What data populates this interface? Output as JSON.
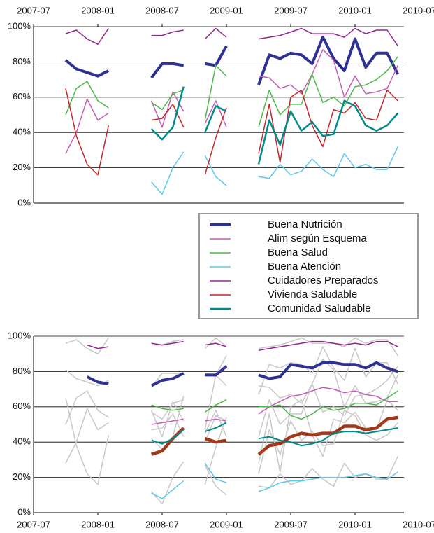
{
  "chart_data": [
    {
      "type": "line",
      "x_axis_position": "top",
      "legend": "below",
      "x": [
        "2007-10",
        "2007-11",
        "2007-12",
        "2008-01",
        "2008-02",
        "2008-03",
        "2008-04",
        "2008-05",
        "2008-06",
        "2008-07",
        "2008-08",
        "2008-09",
        "2008-10",
        "2008-11",
        "2008-12",
        "2009-01",
        "2009-02",
        "2009-03",
        "2009-04",
        "2009-05",
        "2009-06",
        "2009-07",
        "2009-08",
        "2009-09",
        "2009-10",
        "2009-11",
        "2009-12",
        "2010-01",
        "2010-02",
        "2010-03",
        "2010-04",
        "2010-05"
      ],
      "xlim": [
        "2007-07",
        "2010-07"
      ],
      "xticks": [
        "2007-07",
        "2008-01",
        "2008-07",
        "2009-01",
        "2009-07",
        "2010-01",
        "2010-07"
      ],
      "ylim": [
        0,
        100
      ],
      "yticks": [
        {
          "value": 0,
          "label": "0%"
        },
        {
          "value": 20,
          "label": "20%"
        },
        {
          "value": 40,
          "label": "40%"
        },
        {
          "value": 60,
          "label": "60%"
        },
        {
          "value": 80,
          "label": "80%"
        },
        {
          "value": 100,
          "label": "100%"
        }
      ],
      "grid": true,
      "series": [
        {
          "name": "Buena Nutrición",
          "color": "#2e3192",
          "linewidth": 4,
          "values": [
            81,
            76,
            74,
            72,
            75,
            null,
            null,
            null,
            71,
            79,
            79,
            78,
            null,
            79,
            78,
            89,
            null,
            null,
            67,
            84,
            82,
            85,
            84,
            79,
            94,
            82,
            75,
            93,
            77,
            85,
            85,
            73
          ]
        },
        {
          "name": "Alim según Esquema",
          "color": "#c45fb5",
          "linewidth": 1.5,
          "values": [
            28,
            40,
            59,
            47,
            51,
            null,
            null,
            null,
            58,
            43,
            63,
            52,
            null,
            45,
            58,
            43,
            null,
            null,
            72,
            71,
            65,
            67,
            62,
            73,
            87,
            81,
            60,
            72,
            62,
            63,
            65,
            78
          ]
        },
        {
          "name": "Buena Salud",
          "color": "#4db848",
          "linewidth": 1.5,
          "values": [
            50,
            65,
            69,
            58,
            54,
            null,
            null,
            null,
            57,
            53,
            62,
            64,
            null,
            47,
            78,
            72,
            null,
            null,
            43,
            64,
            50,
            56,
            56,
            73,
            57,
            60,
            55,
            66,
            67,
            70,
            75,
            83
          ]
        },
        {
          "name": "Buena Atención",
          "color": "#5ec8e8",
          "linewidth": 1.5,
          "values": [
            null,
            null,
            null,
            null,
            null,
            null,
            null,
            null,
            12,
            5,
            20,
            29,
            null,
            27,
            15,
            10,
            null,
            null,
            15,
            14,
            22,
            16,
            18,
            25,
            19,
            15,
            28,
            20,
            22,
            19,
            19,
            32
          ]
        },
        {
          "name": "Cuidadores Preparados",
          "color": "#92278f",
          "linewidth": 1.5,
          "values": [
            96,
            98,
            93,
            90,
            99,
            null,
            null,
            null,
            95,
            95,
            97,
            98,
            null,
            93,
            99,
            94,
            null,
            null,
            93,
            94,
            95,
            97,
            99,
            96,
            96,
            96,
            94,
            99,
            96,
            98,
            98,
            89
          ]
        },
        {
          "name": "Vivienda Saludable",
          "color": "#c1272d",
          "linewidth": 1.5,
          "values": [
            65,
            38,
            22,
            16,
            44,
            null,
            null,
            null,
            47,
            48,
            56,
            43,
            null,
            16,
            37,
            54,
            null,
            null,
            28,
            56,
            23,
            60,
            64,
            44,
            32,
            53,
            51,
            57,
            48,
            47,
            64,
            58
          ]
        },
        {
          "name": "Comunidad Saludable",
          "color": "#008b8b",
          "linewidth": 2.5,
          "values": [
            null,
            null,
            null,
            null,
            null,
            null,
            null,
            null,
            42,
            36,
            43,
            66,
            null,
            40,
            55,
            52,
            null,
            null,
            22,
            47,
            33,
            52,
            41,
            46,
            38,
            39,
            58,
            55,
            44,
            41,
            44,
            51
          ]
        }
      ]
    },
    {
      "type": "line",
      "x_axis_position": "bottom",
      "x": [
        "2007-10",
        "2007-11",
        "2007-12",
        "2008-01",
        "2008-02",
        "2008-03",
        "2008-04",
        "2008-05",
        "2008-06",
        "2008-07",
        "2008-08",
        "2008-09",
        "2008-10",
        "2008-11",
        "2008-12",
        "2009-01",
        "2009-02",
        "2009-03",
        "2009-04",
        "2009-05",
        "2009-06",
        "2009-07",
        "2009-08",
        "2009-09",
        "2009-10",
        "2009-11",
        "2009-12",
        "2010-01",
        "2010-02",
        "2010-03",
        "2010-04",
        "2010-05"
      ],
      "xlim": [
        "2007-07",
        "2010-07"
      ],
      "xticks": [
        "2007-07",
        "2008-01",
        "2008-07",
        "2009-01",
        "2009-07",
        "2010-01",
        "2010-07"
      ],
      "ylim": [
        0,
        100
      ],
      "yticks": [
        {
          "value": 0,
          "label": "0%"
        },
        {
          "value": 20,
          "label": "20%"
        },
        {
          "value": 40,
          "label": "40%"
        },
        {
          "value": 60,
          "label": "60%"
        },
        {
          "value": 80,
          "label": "80%"
        },
        {
          "value": 100,
          "label": "100%"
        }
      ],
      "grid": true,
      "background_color": "#c8c8c8",
      "series": [
        {
          "color": "#2e3192",
          "linewidth": 4,
          "values": [
            null,
            null,
            77,
            74,
            73,
            null,
            null,
            null,
            72,
            75,
            76,
            79,
            null,
            78,
            78,
            83,
            null,
            null,
            78,
            76,
            77,
            84,
            83,
            82,
            85,
            85,
            84,
            84,
            82,
            85,
            82,
            80
          ]
        },
        {
          "color": "#c45fb5",
          "linewidth": 1.5,
          "values": [
            null,
            null,
            null,
            null,
            null,
            null,
            null,
            null,
            50,
            51,
            52,
            53,
            null,
            52,
            53,
            52,
            null,
            null,
            56,
            60,
            63,
            66,
            67,
            69,
            71,
            70,
            68,
            69,
            67,
            66,
            63,
            63
          ]
        },
        {
          "color": "#4db848",
          "linewidth": 1.5,
          "values": [
            null,
            null,
            null,
            null,
            null,
            null,
            null,
            null,
            61,
            59,
            58,
            59,
            null,
            57,
            61,
            64,
            null,
            null,
            60,
            60,
            61,
            55,
            53,
            56,
            60,
            58,
            59,
            62,
            62,
            61,
            65,
            69
          ]
        },
        {
          "color": "#5ec8e8",
          "linewidth": 1.5,
          "values": [
            null,
            null,
            null,
            null,
            null,
            null,
            null,
            null,
            11,
            8,
            13,
            18,
            null,
            28,
            19,
            17,
            null,
            null,
            12,
            14,
            17,
            18,
            18,
            19,
            20,
            20,
            20,
            21,
            22,
            20,
            19,
            23
          ]
        },
        {
          "color": "#92278f",
          "linewidth": 1.5,
          "values": [
            null,
            null,
            95,
            93,
            94,
            null,
            null,
            null,
            96,
            95,
            96,
            97,
            null,
            95,
            96,
            94,
            null,
            null,
            92,
            93,
            94,
            95,
            96,
            97,
            97,
            96,
            95,
            96,
            95,
            97,
            97,
            94
          ]
        },
        {
          "color": "#a0391c",
          "linewidth": 4.5,
          "values": [
            null,
            null,
            null,
            null,
            null,
            null,
            null,
            null,
            33,
            35,
            42,
            48,
            null,
            42,
            40,
            41,
            null,
            null,
            33,
            38,
            39,
            43,
            45,
            44,
            45,
            45,
            49,
            49,
            47,
            48,
            53,
            54
          ]
        },
        {
          "color": "#008b8b",
          "linewidth": 2,
          "values": [
            null,
            null,
            null,
            null,
            null,
            null,
            null,
            null,
            41,
            39,
            42,
            47,
            null,
            46,
            48,
            51,
            null,
            null,
            42,
            43,
            41,
            40,
            38,
            39,
            41,
            45,
            46,
            46,
            45,
            46,
            47,
            48
          ]
        }
      ]
    }
  ]
}
